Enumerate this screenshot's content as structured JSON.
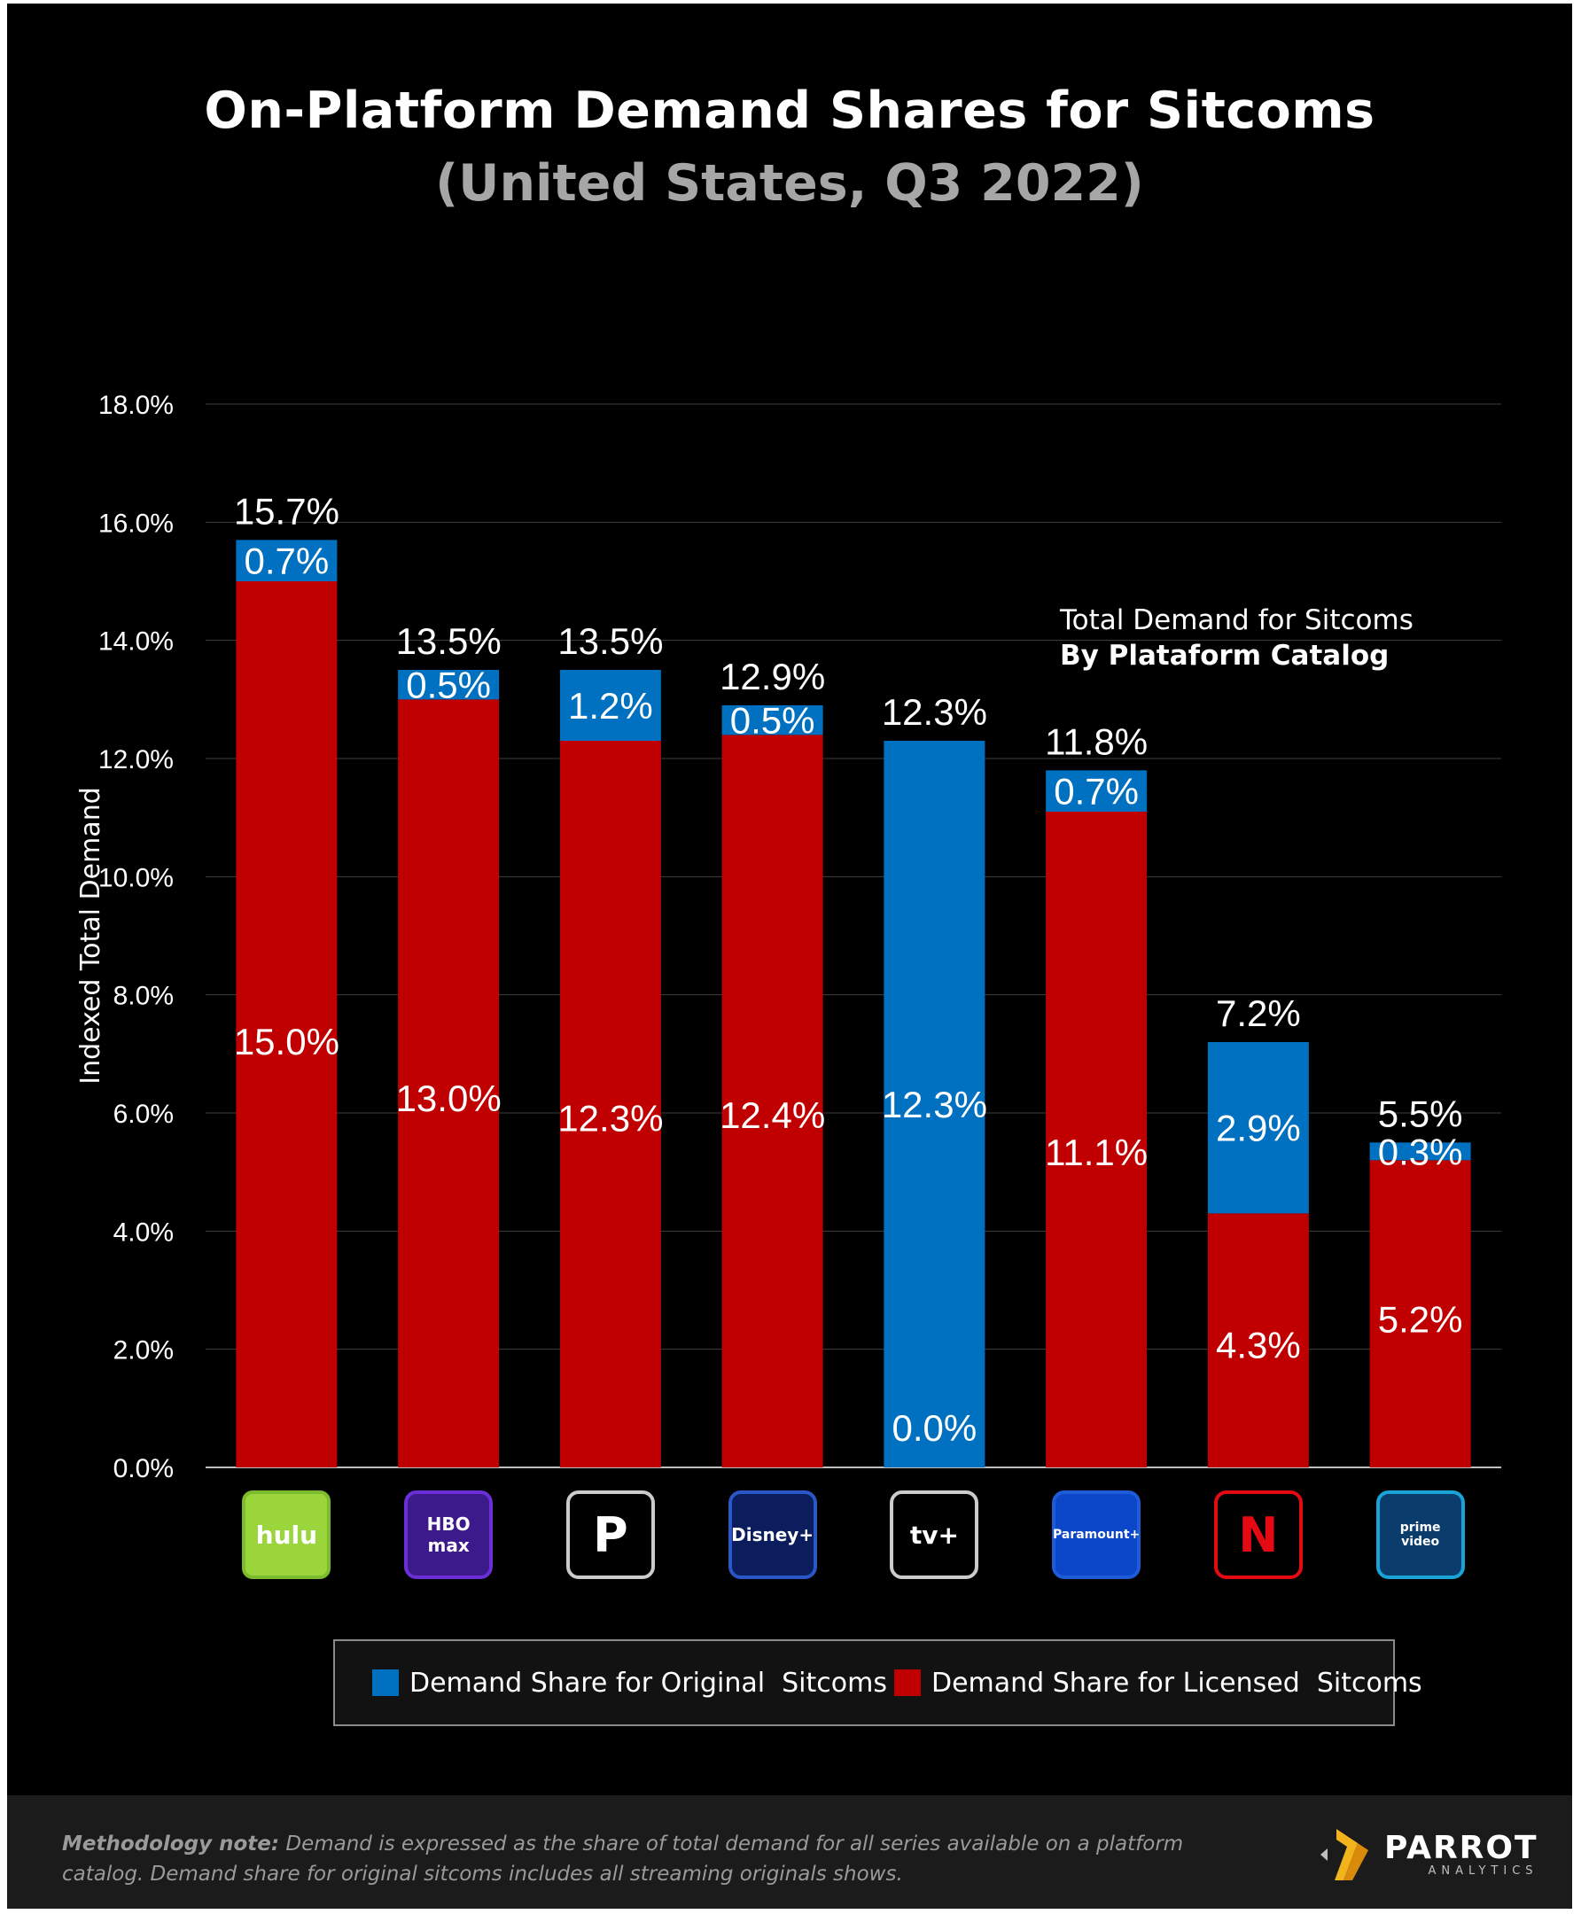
{
  "title": "On-Platform Demand Shares for Sitcoms",
  "subtitle": "(United States, Q3 2022)",
  "annotation": {
    "line1": "Total Demand for Sitcoms",
    "line2": "By Plataform Catalog"
  },
  "colors": {
    "original": "#0070c0",
    "licensed": "#c00000",
    "background": "#000000",
    "grid": "#404040"
  },
  "chart_data": {
    "type": "bar",
    "stacked": true,
    "categories": [
      "hulu",
      "HBO max",
      "Peacock",
      "Disney+",
      "Apple TV+",
      "Paramount+",
      "Netflix",
      "Prime Video"
    ],
    "series": [
      {
        "name": "Demand Share for Licensed  Sitcoms",
        "values": [
          15.0,
          13.0,
          12.3,
          12.4,
          0.0,
          11.1,
          4.3,
          5.2
        ],
        "labels": [
          "15.0%",
          "13.0%",
          "12.3%",
          "12.4%",
          "0.0%",
          "11.1%",
          "4.3%",
          "5.2%"
        ]
      },
      {
        "name": "Demand Share for Original  Sitcoms",
        "values": [
          0.7,
          0.5,
          1.2,
          0.5,
          12.3,
          0.7,
          2.9,
          0.3
        ],
        "labels": [
          "0.7%",
          "0.5%",
          "1.2%",
          "0.5%",
          "12.3%",
          "0.7%",
          "2.9%",
          "0.3%"
        ]
      }
    ],
    "totals": [
      15.7,
      13.5,
      13.5,
      12.9,
      12.3,
      11.8,
      7.2,
      5.5
    ],
    "total_labels": [
      "15.7%",
      "13.5%",
      "13.5%",
      "12.9%",
      "12.3%",
      "11.8%",
      "7.2%",
      "5.5%"
    ],
    "ylabel": "Indexed Total Demand",
    "ylim": [
      0,
      18
    ],
    "yticks": [
      "0.0%",
      "2.0%",
      "4.0%",
      "6.0%",
      "8.0%",
      "10.0%",
      "12.0%",
      "14.0%",
      "16.0%",
      "18.0%"
    ],
    "grid": true,
    "legend_position": "bottom"
  },
  "logos": [
    {
      "icon": "hulu-logo-icon",
      "text": "hulu",
      "border": "#7dbb2e",
      "fill": "#9ad53b"
    },
    {
      "icon": "hbo-max-logo-icon",
      "text": "HBO max",
      "border": "#6a2fd6",
      "fill": "#3d1a8c"
    },
    {
      "icon": "peacock-logo-icon",
      "text": "P",
      "border": "#cccccc",
      "fill": "#000000"
    },
    {
      "icon": "disney-plus-logo-icon",
      "text": "Disney+",
      "border": "#2a56c6",
      "fill": "#0b1d5c"
    },
    {
      "icon": "apple-tv-plus-logo-icon",
      "text": "tv+",
      "border": "#cccccc",
      "fill": "#000000"
    },
    {
      "icon": "paramount-plus-logo-icon",
      "text": "Paramount+",
      "border": "#1e5bd6",
      "fill": "#0d47c9"
    },
    {
      "icon": "netflix-logo-icon",
      "text": "N",
      "border": "#e50914",
      "fill": "#000000"
    },
    {
      "icon": "prime-video-logo-icon",
      "text": "prime video",
      "border": "#1aa3d9",
      "fill": "#0a3d6b"
    }
  ],
  "legend": {
    "original_label": "Demand Share for Original  Sitcoms",
    "licensed_label": "Demand Share for Licensed  Sitcoms"
  },
  "footer": {
    "note_label": "Methodology note:",
    "note_text": " Demand is expressed as the share of total demand for all series available on a platform catalog. Demand share for original sitcoms includes all streaming originals shows.",
    "brand": "PARROT",
    "brand_sub": "ANALYTICS"
  }
}
